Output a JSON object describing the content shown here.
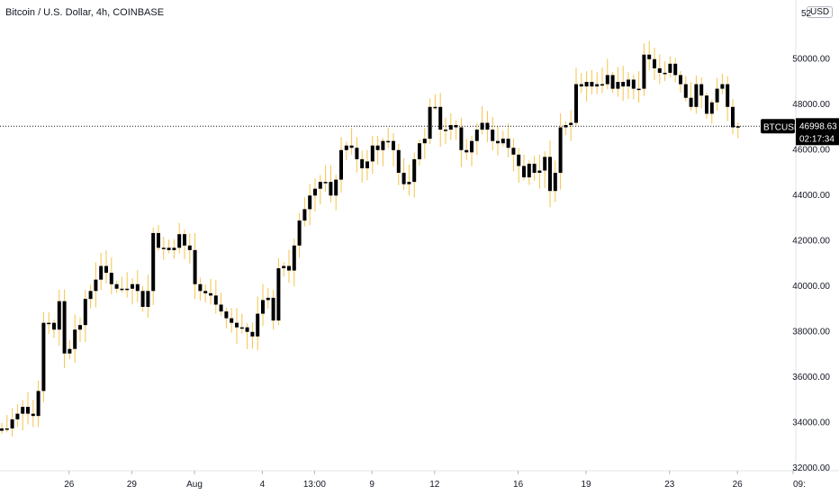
{
  "header": {
    "title": "Bitcoin / U.S. Dollar, 4h, COINBASE",
    "unit": "USD"
  },
  "last": {
    "symbol": "BTCUSD",
    "price": "46998.63",
    "price_value": 46998.63,
    "countdown": "02:17:34"
  },
  "colors": {
    "background": "#ffffff",
    "candle_body": "#000000",
    "wick": "#f5c34a",
    "axis_text": "#131722",
    "price_line": "#131722",
    "tag_bg": "#000000"
  },
  "chart_data": {
    "type": "candlestick",
    "title": "Bitcoin / U.S. Dollar, 4h, COINBASE",
    "ylim": [
      32000,
      52000
    ],
    "y_ticks": [
      "32000.00",
      "34000.00",
      "36000.00",
      "38000.00",
      "40000.00",
      "42000.00",
      "44000.00",
      "46000.00",
      "48000.00",
      "50000.00"
    ],
    "y_tick_values": [
      32000,
      34000,
      36000,
      38000,
      40000,
      42000,
      44000,
      46000,
      48000,
      50000
    ],
    "x_ticks": [
      "26",
      "29",
      "Aug",
      "4",
      "13:00",
      "9",
      "12",
      "16",
      "19",
      "23",
      "26",
      "09:"
    ],
    "x_tick_bar_index": [
      6,
      18,
      30,
      43,
      53,
      64,
      76,
      92,
      105,
      121,
      134,
      143
    ],
    "grid": false,
    "legend": "none",
    "close": [
      33700,
      33700,
      34100,
      34350,
      34650,
      34350,
      34250,
      35350,
      38350,
      38350,
      38050,
      39300,
      37000,
      37200,
      38050,
      38250,
      39400,
      39750,
      40250,
      40850,
      40550,
      40050,
      39850,
      39850,
      39850,
      40050,
      39750,
      39050,
      39750,
      42300,
      41650,
      41650,
      41550,
      41650,
      42250,
      41750,
      41550,
      40050,
      39750,
      39650,
      39550,
      39150,
      38850,
      38550,
      38350,
      38150,
      38150,
      37950,
      37750,
      38750,
      39350,
      39450,
      38450,
      40750,
      40850,
      40650,
      41750,
      42850,
      43350,
      43950,
      44250,
      44550,
      44550,
      43950,
      44650,
      45950,
      46150,
      46050,
      45550,
      45150,
      45450,
      46150,
      45950,
      46350,
      46350,
      45950,
      44950,
      44450,
      44550,
      45550,
      46250,
      46450,
      47850,
      47850,
      46850,
      46850,
      47050,
      46950,
      45950,
      45850,
      46350,
      46850,
      47150,
      46850,
      46350,
      46250,
      46450,
      46050,
      45750,
      45250,
      44750,
      45350,
      44950,
      45050,
      45650,
      44150,
      44950,
      46950,
      47050,
      47150,
      48850,
      48750,
      48950,
      48750,
      48850,
      48850,
      49250,
      48650,
      48950,
      48750,
      49050,
      48650,
      48650,
      50150,
      49950,
      49550,
      49350,
      49350,
      49750,
      49250,
      48850,
      48250,
      47850,
      48850,
      48350,
      47550,
      48050,
      48650,
      48850,
      47850,
      46950,
      46998.63
    ],
    "note_units": "USD"
  }
}
